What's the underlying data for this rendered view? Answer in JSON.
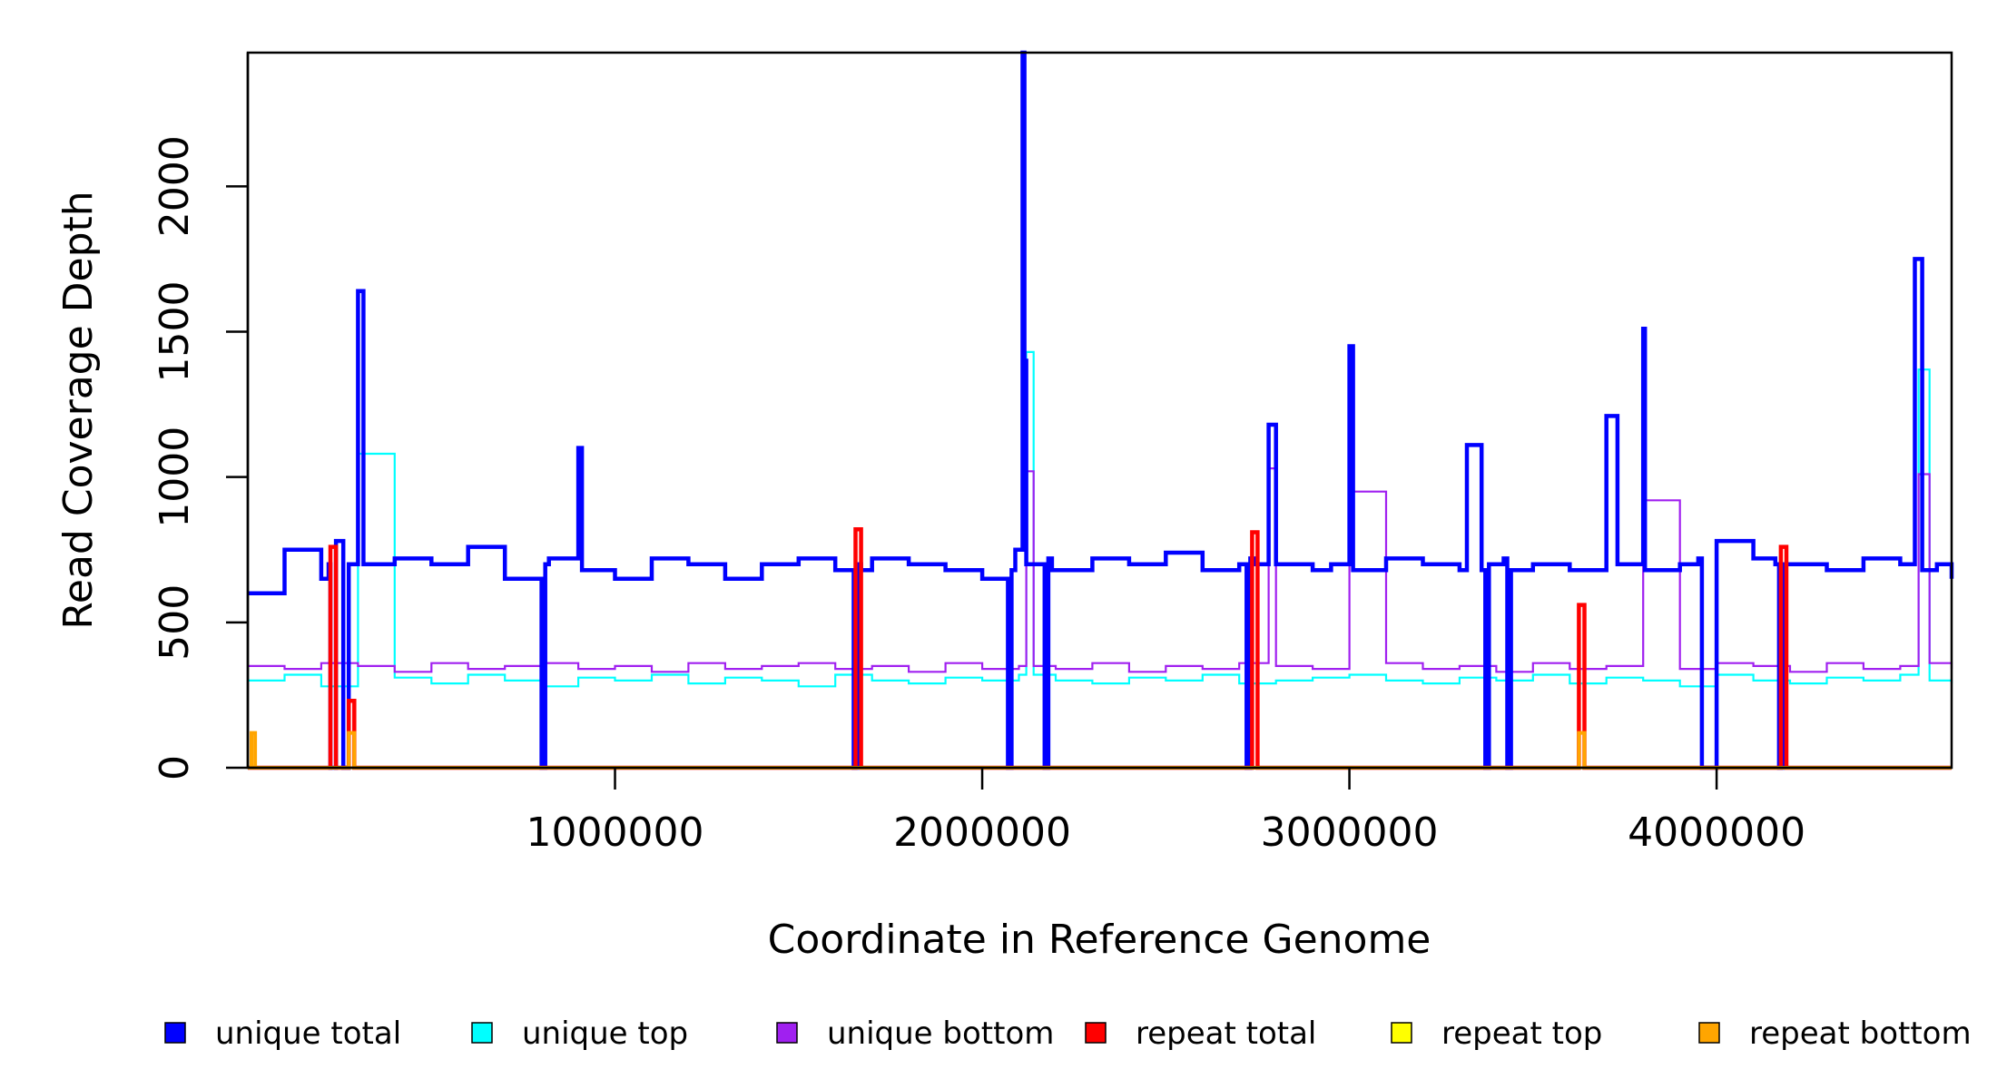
{
  "chart_data": {
    "type": "line",
    "title": "",
    "xlabel": "Coordinate in Reference Genome",
    "ylabel": "Read Coverage Depth",
    "xlim": [
      0,
      4640000
    ],
    "ylim": [
      0,
      2460
    ],
    "x_ticks": [
      1000000,
      2000000,
      3000000,
      4000000
    ],
    "x_tick_labels": [
      "1000000",
      "2000000",
      "3000000",
      "4000000"
    ],
    "y_ticks": [
      0,
      500,
      1000,
      1500,
      2000
    ],
    "y_tick_labels": [
      "0",
      "500",
      "1000",
      "1500",
      "2000"
    ],
    "grid": false,
    "legend_position": "bottom",
    "series": [
      {
        "name": "unique total",
        "color": "#0000ff",
        "x": [
          0,
          100000,
          200000,
          220000,
          225000,
          240000,
          260000,
          275000,
          300000,
          315000,
          400000,
          500000,
          600000,
          700000,
          800000,
          810000,
          820000,
          900000,
          910000,
          1000000,
          1100000,
          1200000,
          1300000,
          1400000,
          1500000,
          1600000,
          1650000,
          1660000,
          1670000,
          1700000,
          1800000,
          1900000,
          2000000,
          2070000,
          2080000,
          2090000,
          2110000,
          2115000,
          2120000,
          2170000,
          2180000,
          2190000,
          2300000,
          2400000,
          2500000,
          2600000,
          2700000,
          2720000,
          2730000,
          2740000,
          2780000,
          2800000,
          2900000,
          2950000,
          3000000,
          3010000,
          3100000,
          3200000,
          3300000,
          3320000,
          3360000,
          3370000,
          3380000,
          3420000,
          3430000,
          3440000,
          3500000,
          3600000,
          3700000,
          3730000,
          3800000,
          3805000,
          3900000,
          3950000,
          3960000,
          4000000,
          4100000,
          4160000,
          4170000,
          4180000,
          4300000,
          4400000,
          4500000,
          4540000,
          4560000,
          4600000,
          4640000
        ],
        "values": [
          600,
          750,
          650,
          700,
          0,
          780,
          0,
          700,
          1640,
          700,
          720,
          700,
          760,
          650,
          0,
          700,
          720,
          1100,
          680,
          650,
          720,
          700,
          650,
          700,
          720,
          680,
          0,
          700,
          680,
          720,
          700,
          680,
          650,
          0,
          680,
          750,
          2460,
          1400,
          700,
          0,
          720,
          680,
          720,
          700,
          740,
          680,
          700,
          0,
          720,
          700,
          1180,
          700,
          680,
          700,
          1450,
          680,
          720,
          700,
          680,
          1110,
          680,
          0,
          700,
          720,
          0,
          680,
          700,
          680,
          1210,
          700,
          1510,
          680,
          700,
          720,
          0,
          780,
          720,
          700,
          0,
          700,
          680,
          720,
          700,
          1750,
          680,
          700,
          650
        ]
      },
      {
        "name": "unique top",
        "color": "#00ffff",
        "x": [
          0,
          100000,
          200000,
          300000,
          400000,
          500000,
          600000,
          700000,
          800000,
          900000,
          1000000,
          1100000,
          1200000,
          1300000,
          1400000,
          1500000,
          1600000,
          1700000,
          1800000,
          1900000,
          2000000,
          2100000,
          2120000,
          2140000,
          2200000,
          2300000,
          2400000,
          2500000,
          2600000,
          2700000,
          2800000,
          2900000,
          3000000,
          3100000,
          3200000,
          3300000,
          3400000,
          3500000,
          3600000,
          3700000,
          3800000,
          3900000,
          4000000,
          4100000,
          4200000,
          4300000,
          4400000,
          4500000,
          4550000,
          4580000,
          4640000
        ],
        "values": [
          300,
          320,
          280,
          1080,
          310,
          290,
          320,
          300,
          280,
          310,
          300,
          320,
          290,
          310,
          300,
          280,
          320,
          300,
          290,
          310,
          300,
          320,
          1430,
          320,
          300,
          290,
          310,
          300,
          320,
          290,
          300,
          310,
          320,
          300,
          290,
          310,
          300,
          320,
          290,
          310,
          300,
          280,
          320,
          300,
          290,
          310,
          300,
          320,
          1370,
          300,
          290
        ]
      },
      {
        "name": "unique bottom",
        "color": "#a020f0",
        "x": [
          0,
          100000,
          200000,
          300000,
          400000,
          500000,
          600000,
          700000,
          800000,
          900000,
          1000000,
          1100000,
          1200000,
          1300000,
          1400000,
          1500000,
          1600000,
          1700000,
          1800000,
          1900000,
          2000000,
          2100000,
          2120000,
          2140000,
          2200000,
          2300000,
          2400000,
          2500000,
          2600000,
          2700000,
          2780000,
          2800000,
          2900000,
          3000000,
          3100000,
          3200000,
          3300000,
          3400000,
          3500000,
          3600000,
          3700000,
          3800000,
          3900000,
          4000000,
          4100000,
          4200000,
          4300000,
          4400000,
          4500000,
          4550000,
          4580000,
          4640000
        ],
        "values": [
          350,
          340,
          360,
          350,
          330,
          360,
          340,
          350,
          360,
          340,
          350,
          330,
          360,
          340,
          350,
          360,
          340,
          350,
          330,
          360,
          340,
          350,
          1020,
          350,
          340,
          360,
          330,
          350,
          340,
          360,
          1030,
          350,
          340,
          950,
          360,
          340,
          350,
          330,
          360,
          340,
          350,
          920,
          340,
          360,
          350,
          330,
          360,
          340,
          350,
          1010,
          360,
          340
        ]
      },
      {
        "name": "repeat total",
        "color": "#ff0000",
        "x": [
          0,
          220000,
          225000,
          240000,
          270000,
          275000,
          290000,
          1650000,
          1655000,
          1670000,
          2730000,
          2735000,
          2750000,
          3620000,
          3625000,
          3640000,
          4170000,
          4175000,
          4190000,
          4640000
        ],
        "values": [
          0,
          0,
          760,
          0,
          0,
          230,
          0,
          0,
          820,
          0,
          0,
          810,
          0,
          0,
          560,
          0,
          0,
          760,
          0,
          0
        ]
      },
      {
        "name": "repeat top",
        "color": "#ffff00",
        "x": [
          0,
          4640000
        ],
        "values": [
          0,
          0
        ]
      },
      {
        "name": "repeat bottom",
        "color": "#ffa500",
        "x": [
          0,
          10000,
          20000,
          270000,
          275000,
          290000,
          3620000,
          3625000,
          3640000,
          4640000
        ],
        "values": [
          0,
          120,
          0,
          0,
          120,
          0,
          0,
          120,
          0,
          0
        ]
      }
    ]
  }
}
